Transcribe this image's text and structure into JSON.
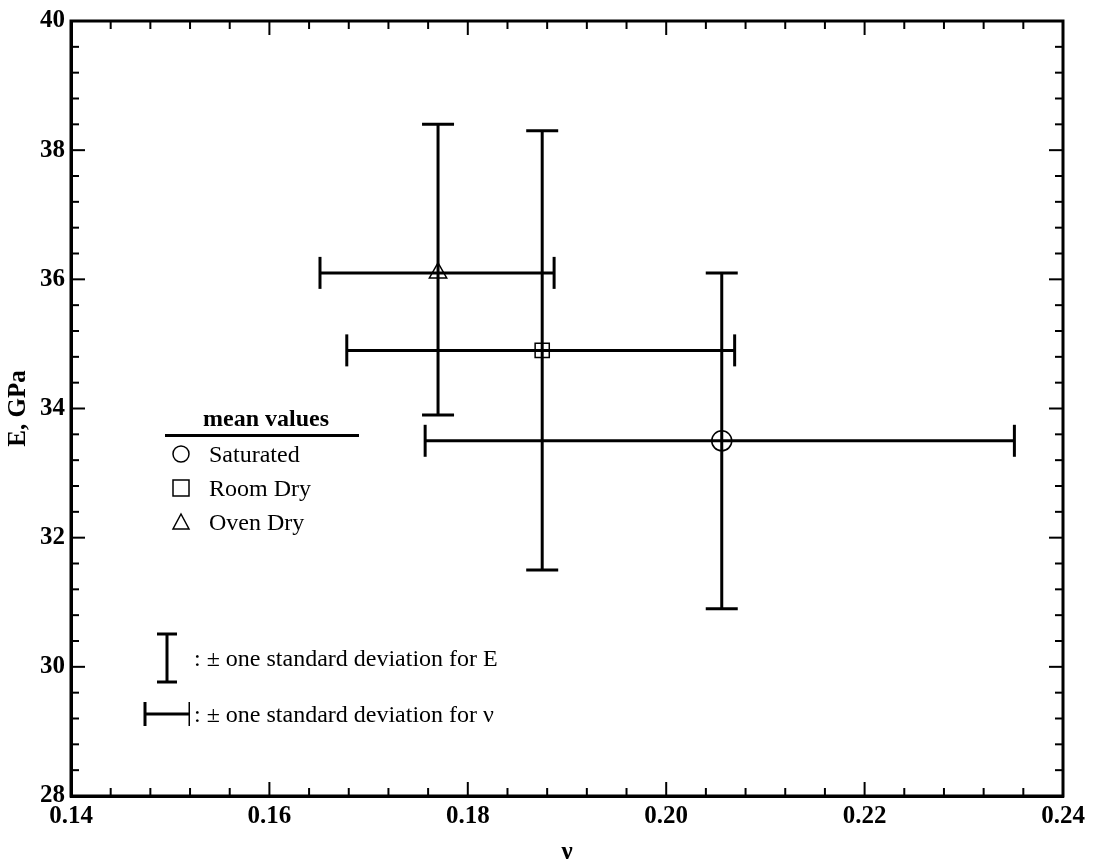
{
  "chart_data": {
    "type": "scatter",
    "xlabel": "ν",
    "ylabel": "E, GPa",
    "legend_title": "mean values",
    "legend": "left",
    "grid": false,
    "xlim": [
      0.14,
      0.24
    ],
    "ylim": [
      28,
      40
    ],
    "xticks": [
      {
        "value": 0.14,
        "label": "0.14"
      },
      {
        "value": 0.144,
        "label": null
      },
      {
        "value": 0.148,
        "label": null
      },
      {
        "value": 0.152,
        "label": null
      },
      {
        "value": 0.156,
        "label": null
      },
      {
        "value": 0.16,
        "label": "0.16"
      },
      {
        "value": 0.164,
        "label": null
      },
      {
        "value": 0.168,
        "label": null
      },
      {
        "value": 0.172,
        "label": null
      },
      {
        "value": 0.176,
        "label": null
      },
      {
        "value": 0.18,
        "label": "0.18"
      },
      {
        "value": 0.184,
        "label": null
      },
      {
        "value": 0.188,
        "label": null
      },
      {
        "value": 0.192,
        "label": null
      },
      {
        "value": 0.196,
        "label": null
      },
      {
        "value": 0.2,
        "label": "0.20"
      },
      {
        "value": 0.204,
        "label": null
      },
      {
        "value": 0.208,
        "label": null
      },
      {
        "value": 0.212,
        "label": null
      },
      {
        "value": 0.216,
        "label": null
      },
      {
        "value": 0.22,
        "label": "0.22"
      },
      {
        "value": 0.224,
        "label": null
      },
      {
        "value": 0.228,
        "label": null
      },
      {
        "value": 0.232,
        "label": null
      },
      {
        "value": 0.236,
        "label": null
      },
      {
        "value": 0.24,
        "label": "0.24"
      }
    ],
    "yticks": [
      28,
      {
        "value": 28.4,
        "label": null
      },
      {
        "value": 28.8,
        "label": null
      },
      {
        "value": 29.2,
        "label": null
      },
      {
        "value": 29.6,
        "label": null
      },
      30,
      {
        "value": 30.4,
        "label": null
      },
      {
        "value": 30.8,
        "label": null
      },
      {
        "value": 31.2,
        "label": null
      },
      {
        "value": 31.6,
        "label": null
      },
      32,
      {
        "value": 32.4,
        "label": null
      },
      {
        "value": 32.8,
        "label": null
      },
      {
        "value": 33.2,
        "label": null
      },
      {
        "value": 33.6,
        "label": null
      },
      34,
      {
        "value": 34.4,
        "label": null
      },
      {
        "value": 34.8,
        "label": null
      },
      {
        "value": 35.2,
        "label": null
      },
      {
        "value": 35.6,
        "label": null
      },
      36,
      {
        "value": 36.4,
        "label": null
      },
      {
        "value": 36.8,
        "label": null
      },
      {
        "value": 37.2,
        "label": null
      },
      {
        "value": 37.6,
        "label": null
      },
      38,
      {
        "value": 38.4,
        "label": null
      },
      {
        "value": 38.8,
        "label": null
      },
      {
        "value": 39.2,
        "label": null
      },
      {
        "value": 39.6,
        "label": null
      },
      40
    ],
    "series": [
      {
        "name": "Saturated",
        "color": "#000000",
        "marker": "circle",
        "x": [
          0.2056
        ],
        "values": [
          33.5
        ],
        "errors": [
          [
            30.9,
            36.1
          ]
        ],
        "xerrors": [
          [
            0.1757,
            0.2351
          ]
        ]
      },
      {
        "name": "Room Dry",
        "color": "#000000",
        "marker": "square",
        "x": [
          0.1875
        ],
        "values": [
          34.9
        ],
        "errors": [
          [
            31.5,
            38.3
          ]
        ],
        "xerrors": [
          [
            0.1678,
            0.2069
          ]
        ]
      },
      {
        "name": "Oven Dry",
        "color": "#000000",
        "marker": "triangle",
        "x": [
          0.177
        ],
        "values": [
          36.1
        ],
        "errors": [
          [
            33.9,
            38.4
          ]
        ],
        "xerrors": [
          [
            0.1651,
            0.1887
          ]
        ]
      }
    ],
    "annotations": [
      ": ± one standard deviation for E",
      ": ± one standard deviation for ν"
    ]
  }
}
